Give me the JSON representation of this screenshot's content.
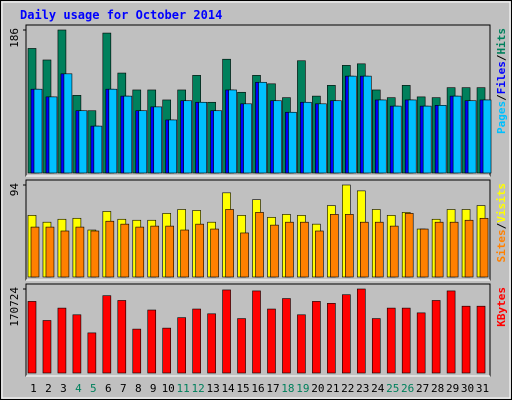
{
  "chart_data": [
    {
      "type": "bar",
      "title": "Daily usage for October 2014",
      "separator": "/",
      "ylim": [
        0,
        186
      ],
      "yticks": [
        186
      ],
      "series": [
        {
          "name": "Hits",
          "color": "#00805c",
          "values": [
            162,
            147,
            186,
            101,
            81,
            182,
            130,
            108,
            108,
            95,
            108,
            127,
            92,
            148,
            105,
            127,
            116,
            98,
            146,
            100,
            114,
            140,
            142,
            108,
            98,
            114,
            99,
            98,
            111,
            111,
            111
          ]
        },
        {
          "name": "Files",
          "color": "#0000ff",
          "values": [
            109,
            99,
            129,
            81,
            61,
            109,
            100,
            81,
            86,
            69,
            94,
            92,
            81,
            108,
            90,
            118,
            94,
            79,
            92,
            90,
            94,
            126,
            126,
            95,
            87,
            95,
            87,
            88,
            100,
            94,
            95
          ]
        },
        {
          "name": "Pages",
          "color": "#00c0ff",
          "values": [
            109,
            99,
            129,
            81,
            61,
            109,
            100,
            81,
            86,
            69,
            94,
            92,
            81,
            108,
            90,
            118,
            94,
            79,
            92,
            90,
            94,
            126,
            126,
            95,
            87,
            95,
            87,
            88,
            100,
            94,
            95
          ]
        }
      ]
    },
    {
      "type": "bar",
      "separator": "/",
      "ylim": [
        0,
        94
      ],
      "yticks": [
        94
      ],
      "series": [
        {
          "name": "Visits",
          "color": "#ffff00",
          "values": [
            63,
            56,
            59,
            60,
            48,
            67,
            59,
            58,
            58,
            65,
            69,
            68,
            56,
            86,
            63,
            79,
            61,
            64,
            63,
            54,
            73,
            94,
            88,
            69,
            63,
            66,
            49,
            59,
            69,
            69,
            73
          ]
        },
        {
          "name": "Sites",
          "color": "#ff8000",
          "values": [
            51,
            51,
            47,
            51,
            47,
            57,
            54,
            51,
            52,
            52,
            48,
            54,
            49,
            69,
            45,
            66,
            53,
            56,
            56,
            47,
            64,
            64,
            56,
            56,
            52,
            65,
            49,
            56,
            56,
            58,
            60
          ]
        }
      ]
    },
    {
      "type": "bar",
      "ylim": [
        0,
        170724
      ],
      "yticks": [
        170724
      ],
      "categories": [
        "1",
        "2",
        "3",
        "4",
        "5",
        "6",
        "7",
        "8",
        "9",
        "10",
        "11",
        "12",
        "13",
        "14",
        "15",
        "16",
        "17",
        "18",
        "19",
        "20",
        "21",
        "22",
        "23",
        "24",
        "25",
        "26",
        "27",
        "28",
        "29",
        "30",
        "31"
      ],
      "category_colors": [
        "#000000",
        "#000000",
        "#000000",
        "#00805c",
        "#00805c",
        "#000000",
        "#000000",
        "#000000",
        "#000000",
        "#000000",
        "#00805c",
        "#00805c",
        "#000000",
        "#000000",
        "#000000",
        "#000000",
        "#000000",
        "#00805c",
        "#00805c",
        "#000000",
        "#000000",
        "#000000",
        "#000000",
        "#000000",
        "#00805c",
        "#00805c",
        "#000000",
        "#000000",
        "#000000",
        "#000000",
        "#000000"
      ],
      "series": [
        {
          "name": "KBytes",
          "color": "#ff0000",
          "values": [
            145500,
            106700,
            131900,
            118300,
            81500,
            157100,
            147400,
            89200,
            128000,
            91200,
            112500,
            130000,
            120300,
            168800,
            110600,
            166800,
            130000,
            151300,
            118300,
            145500,
            141600,
            159100,
            170724,
            110600,
            131900,
            131900,
            122200,
            147400,
            166800,
            135800,
            135800
          ]
        }
      ]
    }
  ]
}
